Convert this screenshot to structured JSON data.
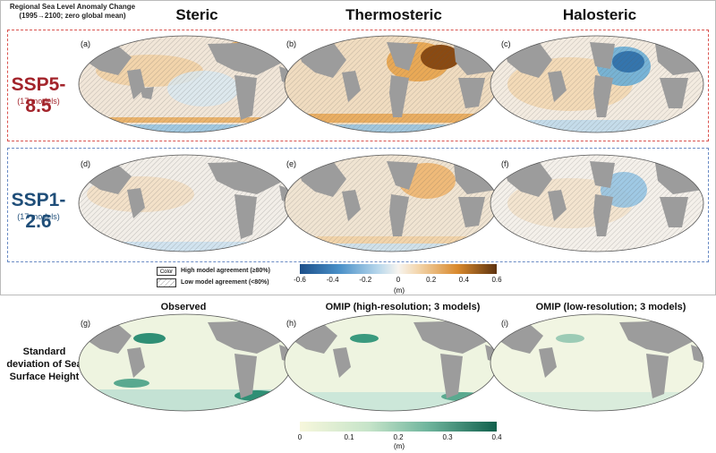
{
  "header": {
    "title": "Regional Sea Level Anomaly Change",
    "subtitle": "(1995→2100; zero global mean)"
  },
  "columns": [
    "Steric",
    "Thermosteric",
    "Halosteric"
  ],
  "scenarios": [
    {
      "name": "SSP5-8.5",
      "sub": "(17 models)",
      "color": "#a3242b"
    },
    {
      "name": "SSP1-2.6",
      "sub": "(17 models)",
      "color": "#1f4e79"
    }
  ],
  "panel_labels": [
    "(a)",
    "(b)",
    "(c)",
    "(d)",
    "(e)",
    "(f)",
    "(g)",
    "(h)",
    "(i)"
  ],
  "agreement_legend": {
    "box_label": "Color",
    "high": "High model agreement (≥80%)",
    "low": "Low model agreement (<80%)"
  },
  "colorbar_top": {
    "ticks": [
      "-0.6",
      "-0.4",
      "-0.2",
      "0",
      "0.2",
      "0.4",
      "0.6"
    ],
    "unit": "(m)"
  },
  "bottom_row": {
    "row_label": "Standard deviation of Sea Surface Height",
    "titles": [
      "Observed",
      "OMIP (high-resolution; 3 models)",
      "OMIP (low-resolution; 3 models)"
    ]
  },
  "colorbar_bottom": {
    "ticks": [
      "0",
      "0.1",
      "0.2",
      "0.3",
      "0.4"
    ],
    "unit": "(m)"
  },
  "colors": {
    "land": "#9c9c9c",
    "ocean_neutral": "#eef2f6",
    "warm": "#e8a34a",
    "warm_dark": "#8a4a12",
    "cool": "#6aaed6",
    "cool_dark": "#2c6ea8",
    "ssh_low": "#f7f7dc",
    "ssh_high": "#11604c"
  }
}
